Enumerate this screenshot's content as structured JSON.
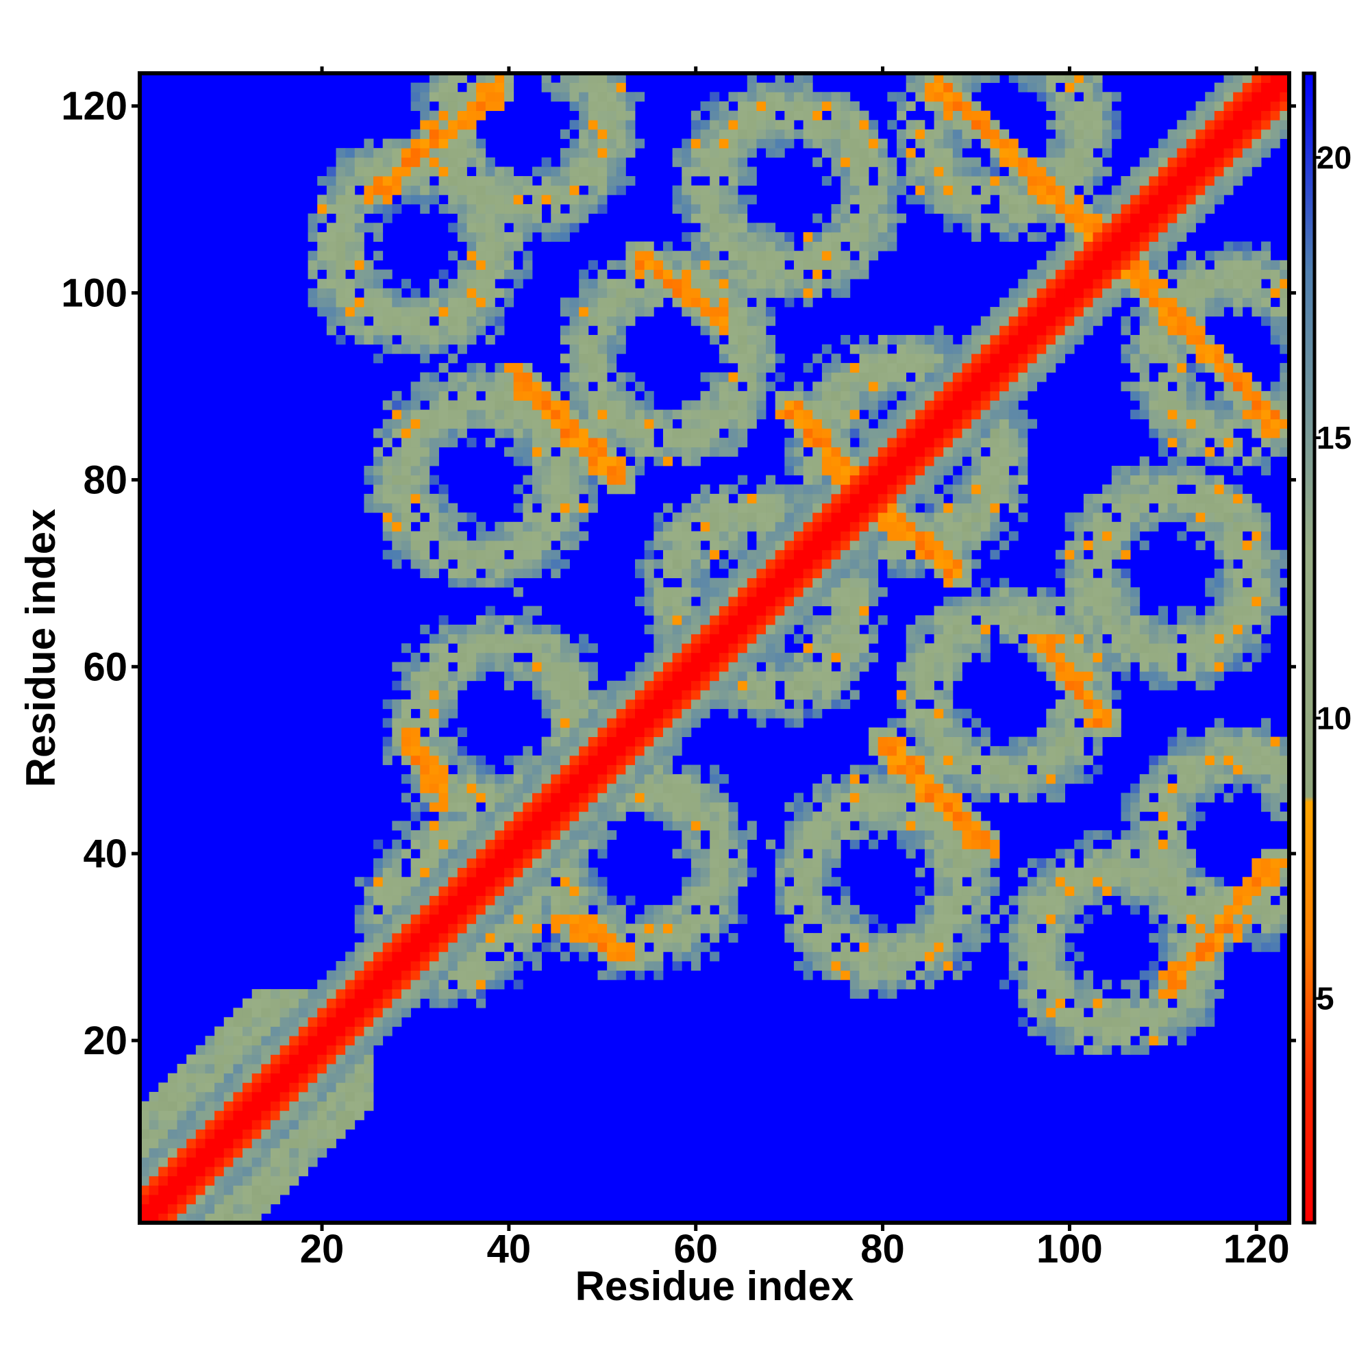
{
  "chart_data": {
    "type": "heatmap",
    "title": "",
    "xlabel": "Residue index",
    "ylabel": "Residue index",
    "n_residues": 123,
    "xlim": [
      1,
      123
    ],
    "ylim": [
      1,
      123
    ],
    "x_ticks": [
      20,
      40,
      60,
      80,
      100,
      120
    ],
    "y_ticks": [
      20,
      40,
      60,
      80,
      100,
      120
    ],
    "colorbar": {
      "range": [
        1,
        21.5
      ],
      "ticks": [
        5,
        10,
        15,
        20
      ],
      "tick_labels": [
        "5",
        "10",
        "15",
        "20"
      ],
      "colors": [
        {
          "value": 1,
          "color": "#ff0000"
        },
        {
          "value": 3.5,
          "color": "#ff2a00"
        },
        {
          "value": 6,
          "color": "#ff7f00"
        },
        {
          "value": 8.5,
          "color": "#ffa500"
        },
        {
          "value": 8.6,
          "color": "#91a77d"
        },
        {
          "value": 13,
          "color": "#98ae85"
        },
        {
          "value": 18,
          "color": "#4f7fb0"
        },
        {
          "value": 21.5,
          "color": "#0000ff"
        }
      ],
      "background_color": "#0000ff"
    },
    "features": {
      "diagonal": "contact values near 1 along i = j",
      "antiparallel_bands": [
        {
          "from": [
            30,
            120
          ],
          "to": [
            43,
            108
          ],
          "value": 7
        },
        {
          "from": [
            55,
            106
          ],
          "to": [
            62,
            97
          ],
          "value": 7
        },
        {
          "from": [
            41,
            90
          ],
          "to": [
            52,
            79
          ],
          "value": 7
        },
        {
          "from": [
            71,
            87
          ],
          "to": [
            77,
            80
          ],
          "value": 7
        },
        {
          "from": [
            92,
            120
          ],
          "to": [
            104,
            107
          ],
          "value": 7
        },
        {
          "from": [
            106,
            103
          ],
          "to": [
            122,
            86
          ],
          "value": 7
        },
        {
          "from": [
            80,
            77
          ],
          "to": [
            88,
            70
          ],
          "value": 7
        },
        {
          "from": [
            97,
            63
          ],
          "to": [
            104,
            54
          ],
          "value": 7
        },
        {
          "from": [
            80,
            52
          ],
          "to": [
            91,
            41
          ],
          "value": 7
        },
        {
          "from": [
            29,
            53
          ],
          "to": [
            34,
            48
          ],
          "value": 7
        },
        {
          "from": [
            46,
            33
          ],
          "to": [
            53,
            29
          ],
          "value": 7
        },
        {
          "from": [
            111,
            26
          ],
          "to": [
            122,
            39
          ],
          "value": 7
        }
      ]
    }
  }
}
